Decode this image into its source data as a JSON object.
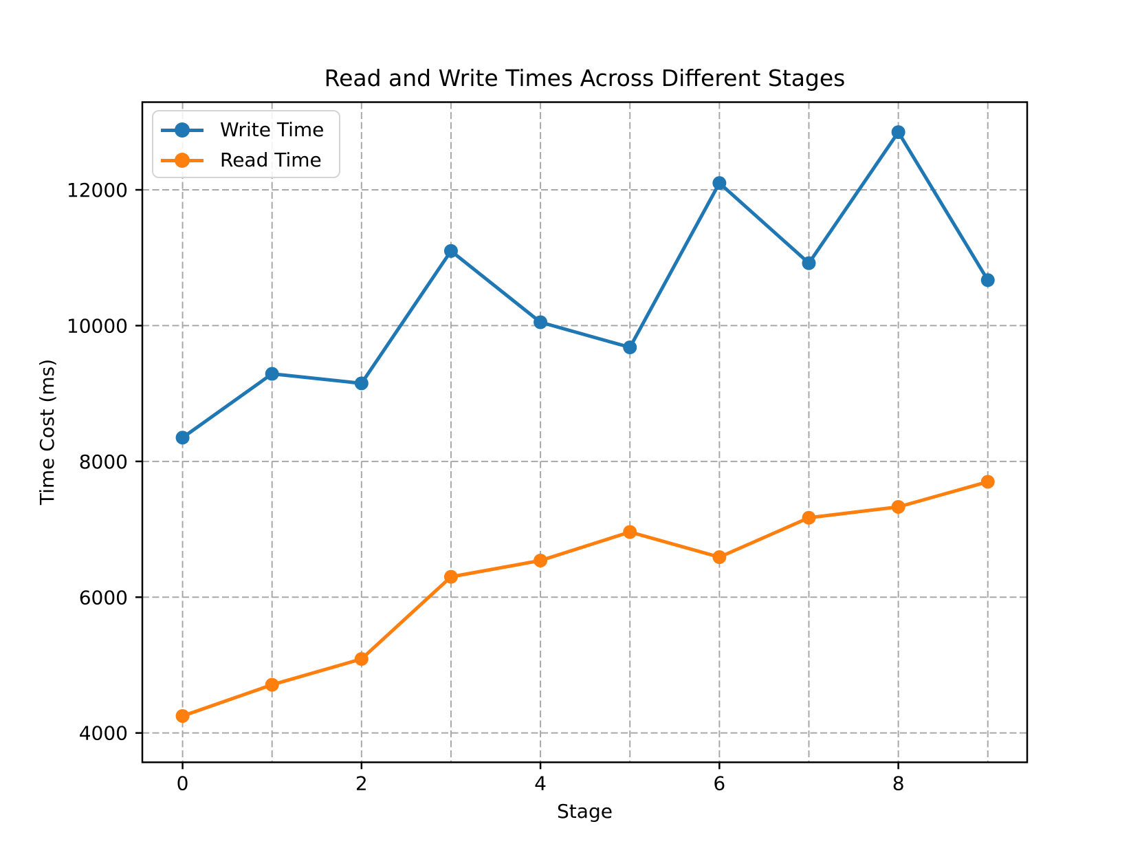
{
  "chart_data": {
    "type": "line",
    "title": "Read and Write Times Across Different Stages",
    "xlabel": "Stage",
    "ylabel": "Time Cost (ms)",
    "x": [
      0,
      1,
      2,
      3,
      4,
      5,
      6,
      7,
      8,
      9
    ],
    "series": [
      {
        "name": "Write Time",
        "color": "#1f77b4",
        "marker": "circle",
        "values": [
          8350,
          9290,
          9150,
          11100,
          10050,
          9680,
          12100,
          10920,
          12850,
          10670
        ]
      },
      {
        "name": "Read Time",
        "color": "#ff7f0e",
        "marker": "circle",
        "values": [
          4250,
          4710,
          5090,
          6300,
          6540,
          6960,
          6590,
          7170,
          7330,
          7700
        ]
      }
    ],
    "xlim": [
      -0.45,
      9.44
    ],
    "ylim": [
      3568,
      13292
    ],
    "yticks": [
      4000,
      6000,
      8000,
      10000,
      12000
    ],
    "xtick_labels": [
      0,
      2,
      4,
      6,
      8
    ],
    "x_gridlines": [
      0,
      1,
      2,
      3,
      4,
      5,
      6,
      7,
      8,
      9
    ],
    "grid": true,
    "grid_style": "dashed",
    "legend_position": "upper left",
    "colors": {
      "grid": "#a8a8a8",
      "axis": "#000000",
      "background": "#ffffff",
      "text": "#000000"
    }
  }
}
